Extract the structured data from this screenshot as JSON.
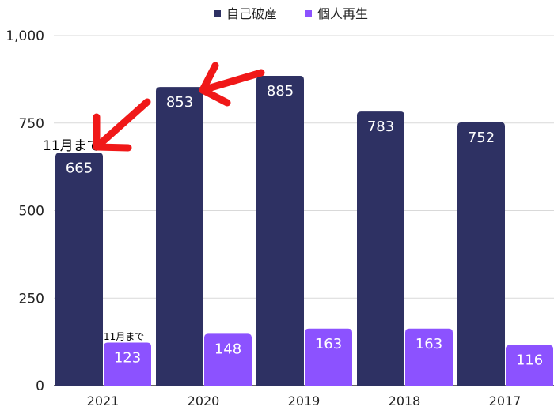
{
  "chart_data": {
    "type": "bar",
    "title": "",
    "xlabel": "",
    "ylabel": "",
    "categories": [
      "2021",
      "2020",
      "2019",
      "2018",
      "2017"
    ],
    "series": [
      {
        "name": "自己破産",
        "color": "#2e3163",
        "values": [
          665,
          853,
          885,
          783,
          752
        ]
      },
      {
        "name": "個人再生",
        "color": "#8c52ff",
        "values": [
          123,
          148,
          163,
          163,
          116
        ]
      }
    ],
    "ylim": [
      0,
      1000
    ],
    "yticks": [
      0,
      250,
      500,
      750,
      1000
    ],
    "ytick_labels": [
      "0",
      "250",
      "500",
      "750",
      "1,000"
    ],
    "grid": true,
    "legend_position": "top-center",
    "annotations": [
      {
        "text": "11月まで",
        "target": "自己破産 2021"
      },
      {
        "text": "11月まで",
        "target": "個人再生 2021"
      }
    ],
    "arrow_color": "#f01818"
  }
}
